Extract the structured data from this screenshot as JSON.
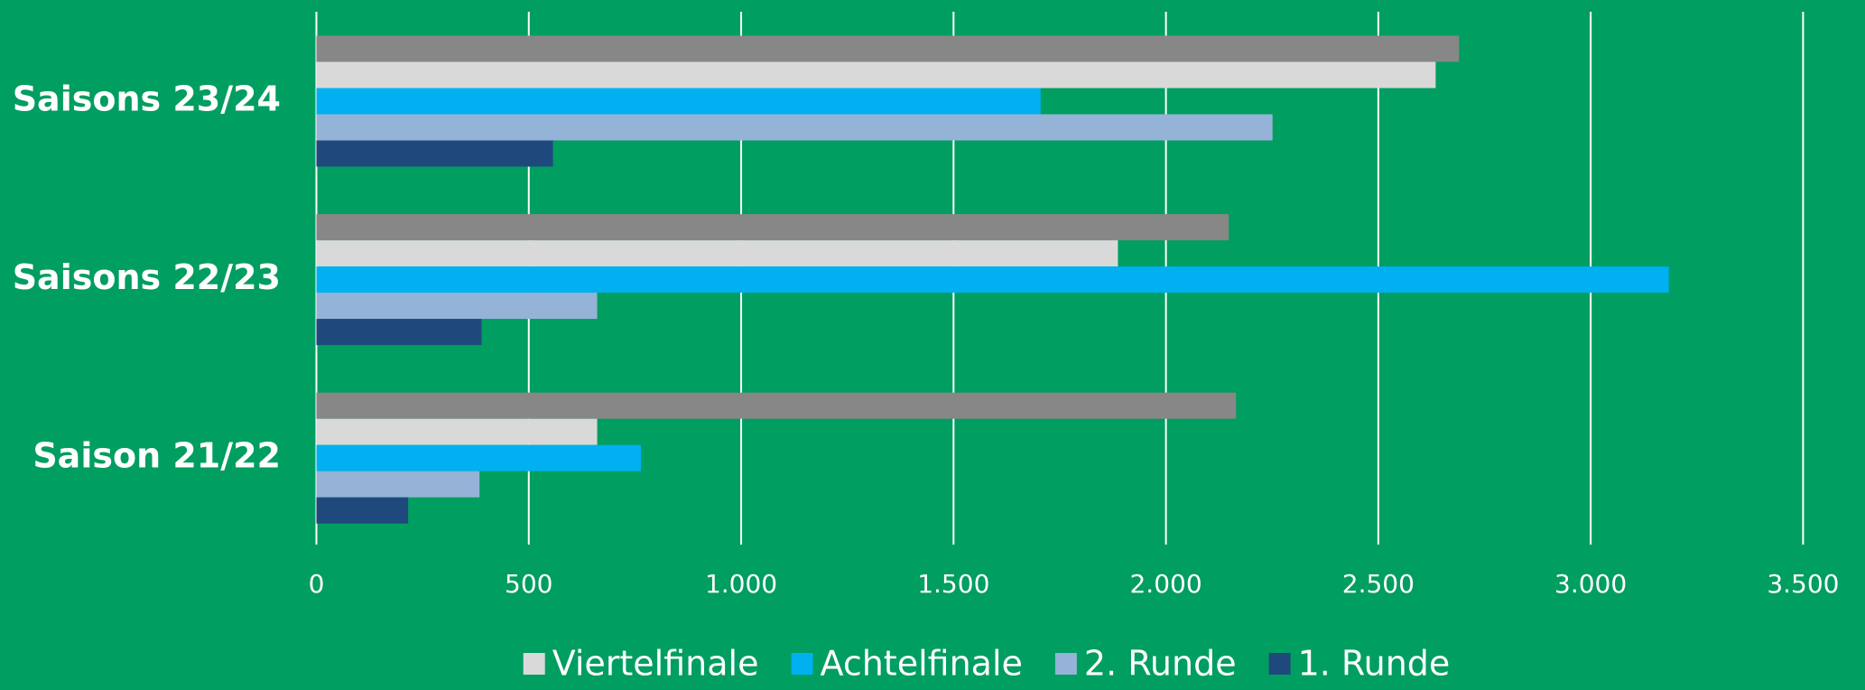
{
  "chart_data": {
    "type": "bar",
    "orientation": "horizontal",
    "categories": [
      "Saisons 23/24",
      "Saisons 22/23",
      "Saison 21/22"
    ],
    "series": [
      {
        "name": null,
        "color": "#878787",
        "values": [
          2690,
          2148,
          2165
        ]
      },
      {
        "name": "Viertelfinale",
        "color": "#d9d9d9",
        "values": [
          2635,
          1887,
          661
        ]
      },
      {
        "name": "Achtelfinale",
        "color": "#00b0f0",
        "values": [
          1705,
          3184,
          764
        ]
      },
      {
        "name": "2. Runde",
        "color": "#95b3d7",
        "values": [
          2251,
          661,
          384
        ]
      },
      {
        "name": "1. Runde",
        "color": "#1f497d",
        "values": [
          557,
          389,
          216
        ]
      }
    ],
    "xlim": [
      0,
      3500
    ],
    "xticks": [
      0,
      500,
      {
        "value": 1000,
        "label": "1.000"
      },
      {
        "value": 1500,
        "label": "1.500"
      },
      {
        "value": 2000,
        "label": "2.000"
      },
      {
        "value": 2500,
        "label": "2.500"
      },
      {
        "value": 3000,
        "label": "3.000"
      },
      {
        "value": 3500,
        "label": "3.500"
      }
    ],
    "grid": true,
    "legend": "bottom"
  }
}
